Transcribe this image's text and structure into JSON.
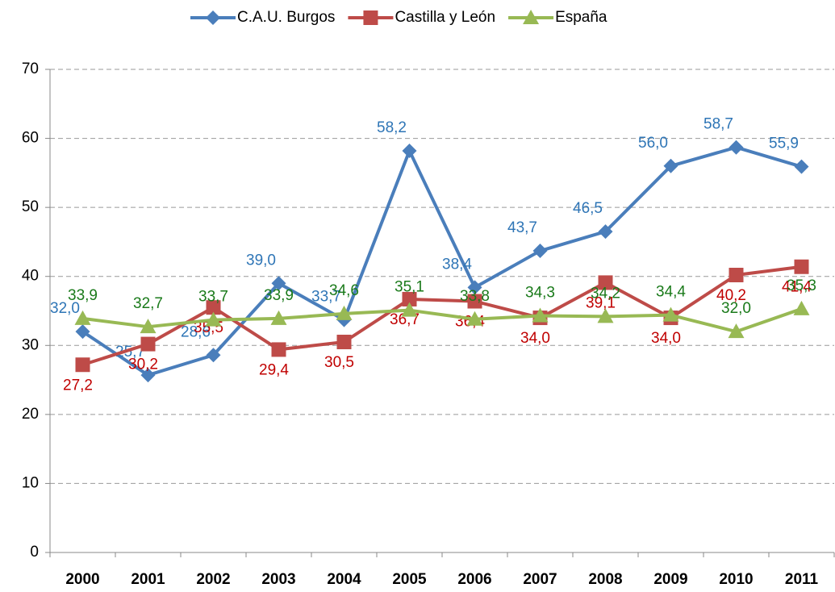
{
  "chart_data": {
    "type": "line",
    "categories": [
      "2000",
      "2001",
      "2002",
      "2003",
      "2004",
      "2005",
      "2006",
      "2007",
      "2008",
      "2009",
      "2010",
      "2011"
    ],
    "series": [
      {
        "name": "C.A.U. Burgos",
        "color": "#4a7ebb",
        "label_color": "#2e75b6",
        "marker": "diamond",
        "values": [
          32.0,
          25.7,
          28.6,
          39.0,
          33.7,
          58.2,
          38.4,
          43.7,
          46.5,
          56.0,
          58.7,
          55.9
        ],
        "value_labels": [
          "32,0",
          "25,7",
          "28,6",
          "39,0",
          "33,7",
          "58,2",
          "38,4",
          "43,7",
          "46,5",
          "56,0",
          "58,7",
          "55,9"
        ]
      },
      {
        "name": "Castilla y León",
        "color": "#be4b48",
        "label_color": "#c00000",
        "marker": "square",
        "values": [
          27.2,
          30.2,
          35.5,
          29.4,
          30.5,
          36.7,
          36.4,
          34.0,
          39.1,
          34.0,
          40.2,
          41.4
        ],
        "value_labels": [
          "27,2",
          "30,2",
          "35,5",
          "29,4",
          "30,5",
          "36,7",
          "36,4",
          "34,0",
          "39,1",
          "34,0",
          "40,2",
          "41,4"
        ]
      },
      {
        "name": "España",
        "color": "#98b954",
        "label_color": "#1a7a1a",
        "marker": "triangle",
        "values": [
          33.9,
          32.7,
          33.7,
          33.9,
          34.6,
          35.1,
          33.8,
          34.3,
          34.2,
          34.4,
          32.0,
          35.3
        ],
        "value_labels": [
          "33,9",
          "32,7",
          "33,7",
          "33,9",
          "34,6",
          "35,1",
          "33,8",
          "34,3",
          "34,2",
          "34,4",
          "32,0",
          "35,3"
        ]
      }
    ],
    "ylim": [
      0,
      70
    ],
    "yticks": [
      0,
      10,
      20,
      30,
      40,
      50,
      60,
      70
    ],
    "grid": true,
    "legend": "top"
  }
}
